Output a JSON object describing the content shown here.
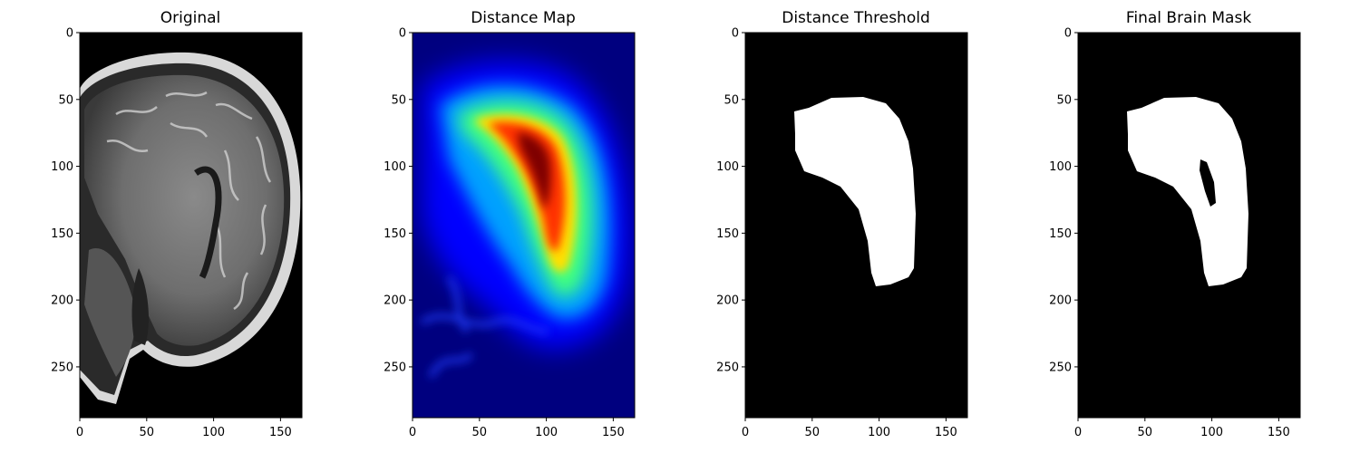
{
  "panels": [
    {
      "title": "Original",
      "kind": "mri"
    },
    {
      "title": "Distance Map",
      "kind": "distance"
    },
    {
      "title": "Distance Threshold",
      "kind": "threshold"
    },
    {
      "title": "Final Brain Mask",
      "kind": "final"
    }
  ],
  "chart_data": [
    {
      "type": "heatmap",
      "title": "Original",
      "xlim": [
        0,
        166
      ],
      "ylim": [
        288,
        0
      ],
      "xticks": [
        "0",
        "50",
        "100",
        "150"
      ],
      "yticks": [
        "0",
        "50",
        "100",
        "150",
        "200",
        "250"
      ],
      "colormap": "gray"
    },
    {
      "type": "heatmap",
      "title": "Distance Map",
      "xlim": [
        0,
        166
      ],
      "ylim": [
        288,
        0
      ],
      "xticks": [
        "0",
        "50",
        "100",
        "150"
      ],
      "yticks": [
        "0",
        "50",
        "100",
        "150",
        "200",
        "250"
      ],
      "colormap": "jet"
    },
    {
      "type": "heatmap",
      "title": "Distance Threshold",
      "xlim": [
        0,
        166
      ],
      "ylim": [
        288,
        0
      ],
      "xticks": [
        "0",
        "50",
        "100",
        "150"
      ],
      "yticks": [
        "0",
        "50",
        "100",
        "150",
        "200",
        "250"
      ],
      "colormap": "gray"
    },
    {
      "type": "heatmap",
      "title": "Final Brain Mask",
      "xlim": [
        0,
        166
      ],
      "ylim": [
        288,
        0
      ],
      "xticks": [
        "0",
        "50",
        "100",
        "150"
      ],
      "yticks": [
        "0",
        "50",
        "100",
        "150",
        "200",
        "250"
      ],
      "colormap": "gray"
    }
  ],
  "colors": {
    "background": "#000000",
    "mask": "#ffffff",
    "jet_low": "#00007f",
    "jet_high": "#7f0000"
  }
}
